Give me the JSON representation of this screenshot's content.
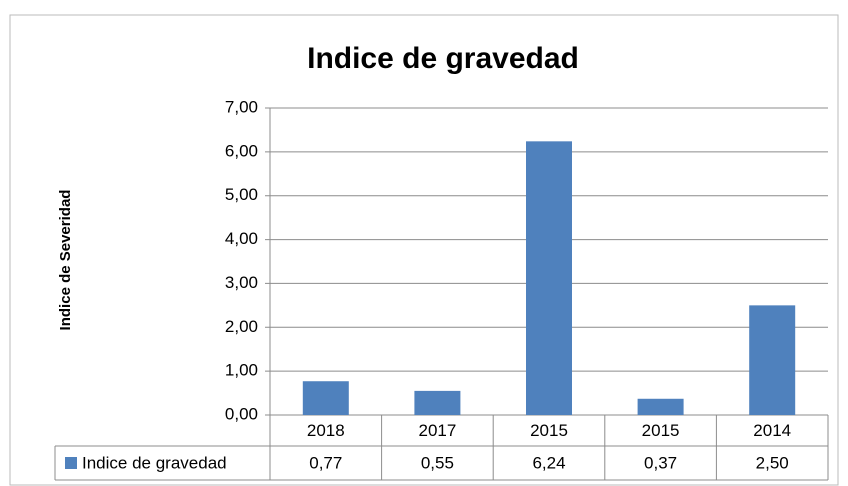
{
  "chart_data": {
    "type": "bar",
    "title": "Indice de gravedad",
    "y_label": "Indice de Severidad",
    "categories": [
      "2018",
      "2017",
      "2015",
      "2015",
      "2014"
    ],
    "series": [
      {
        "name": "Indice de gravedad",
        "color": "#4f81bd",
        "values": [
          0.77,
          0.55,
          6.24,
          0.37,
          2.5
        ],
        "value_labels": [
          "0,77",
          "0,55",
          "6,24",
          "0,37",
          "2,50"
        ]
      }
    ],
    "ylim": [
      0,
      7
    ],
    "yticks": [
      {
        "value": 0,
        "label": "0,00"
      },
      {
        "value": 1,
        "label": "1,00"
      },
      {
        "value": 2,
        "label": "2,00"
      },
      {
        "value": 3,
        "label": "3,00"
      },
      {
        "value": 4,
        "label": "4,00"
      },
      {
        "value": 5,
        "label": "5,00"
      },
      {
        "value": 6,
        "label": "6,00"
      },
      {
        "value": 7,
        "label": "7,00"
      }
    ],
    "grid": true
  }
}
